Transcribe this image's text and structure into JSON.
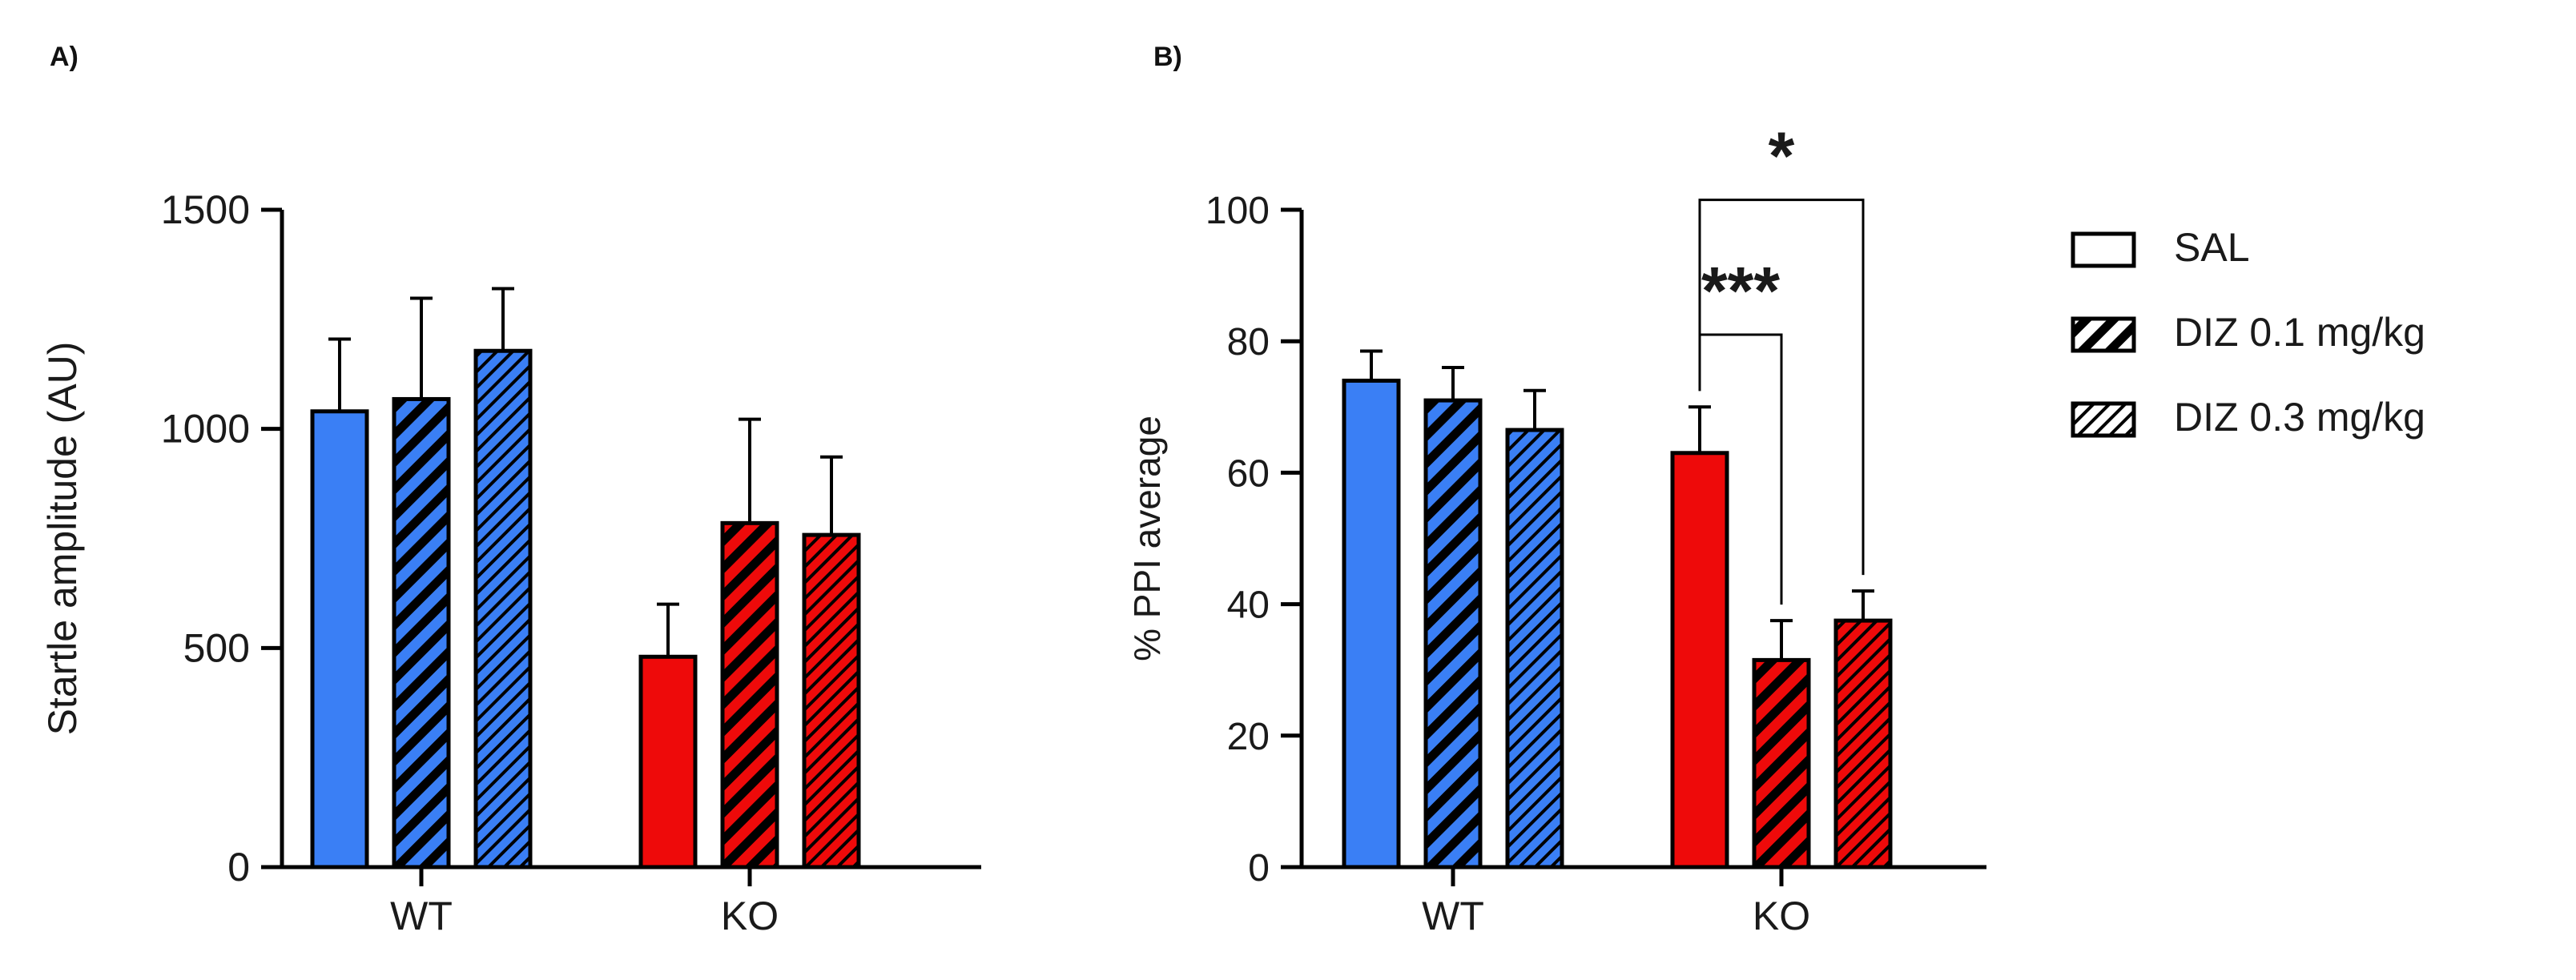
{
  "panels": {
    "a_label": "A)",
    "b_label": "B)"
  },
  "legend": {
    "items": [
      {
        "label": "SAL",
        "pattern": "solid"
      },
      {
        "label": "DIZ 0.1 mg/kg",
        "pattern": "hatch-thick"
      },
      {
        "label": "DIZ 0.3 mg/kg",
        "pattern": "hatch-thin"
      }
    ]
  },
  "colors": {
    "wt": "#3a7ff5",
    "ko": "#ee0a0a",
    "axis": "#111111"
  },
  "chart_data": [
    {
      "type": "bar",
      "panel": "A",
      "title": "",
      "xlabel": "",
      "ylabel": "Startle amplitude (AU)",
      "ylim": [
        0,
        1500
      ],
      "yticks": [
        "0",
        "500",
        "1000",
        "1500"
      ],
      "yticks_values": [
        0,
        500,
        1000,
        1500
      ],
      "categories": [
        "WT",
        "KO"
      ],
      "series": [
        {
          "name": "SAL",
          "values": [
            1040,
            480
          ],
          "errors": [
            165,
            120
          ]
        },
        {
          "name": "DIZ 0.1 mg/kg",
          "values": [
            1068,
            785
          ],
          "errors": [
            230,
            237
          ]
        },
        {
          "name": "DIZ 0.3 mg/kg",
          "values": [
            1178,
            758
          ],
          "errors": [
            142,
            178
          ]
        }
      ],
      "annotations": []
    },
    {
      "type": "bar",
      "panel": "B",
      "title": "",
      "xlabel": "",
      "ylabel": "% PPI average",
      "ylim": [
        0,
        100
      ],
      "yticks": [
        "0",
        "20",
        "40",
        "60",
        "80",
        "100"
      ],
      "yticks_values": [
        0,
        20,
        40,
        60,
        80,
        100
      ],
      "categories": [
        "WT",
        "KO"
      ],
      "series": [
        {
          "name": "SAL",
          "values": [
            74,
            63
          ],
          "errors": [
            4.5,
            7
          ]
        },
        {
          "name": "DIZ 0.1 mg/kg",
          "values": [
            71,
            31.5
          ],
          "errors": [
            5,
            6
          ]
        },
        {
          "name": "DIZ 0.3 mg/kg",
          "values": [
            66.5,
            37.5
          ],
          "errors": [
            6,
            4.5
          ]
        }
      ],
      "annotations": [
        {
          "text": "***",
          "group": "KO",
          "from": "SAL",
          "to": "DIZ 0.1 mg/kg",
          "level": 81
        },
        {
          "text": "*",
          "group": "KO",
          "from": "SAL",
          "to": "DIZ 0.3 mg/kg",
          "level": 101.5
        }
      ]
    }
  ]
}
